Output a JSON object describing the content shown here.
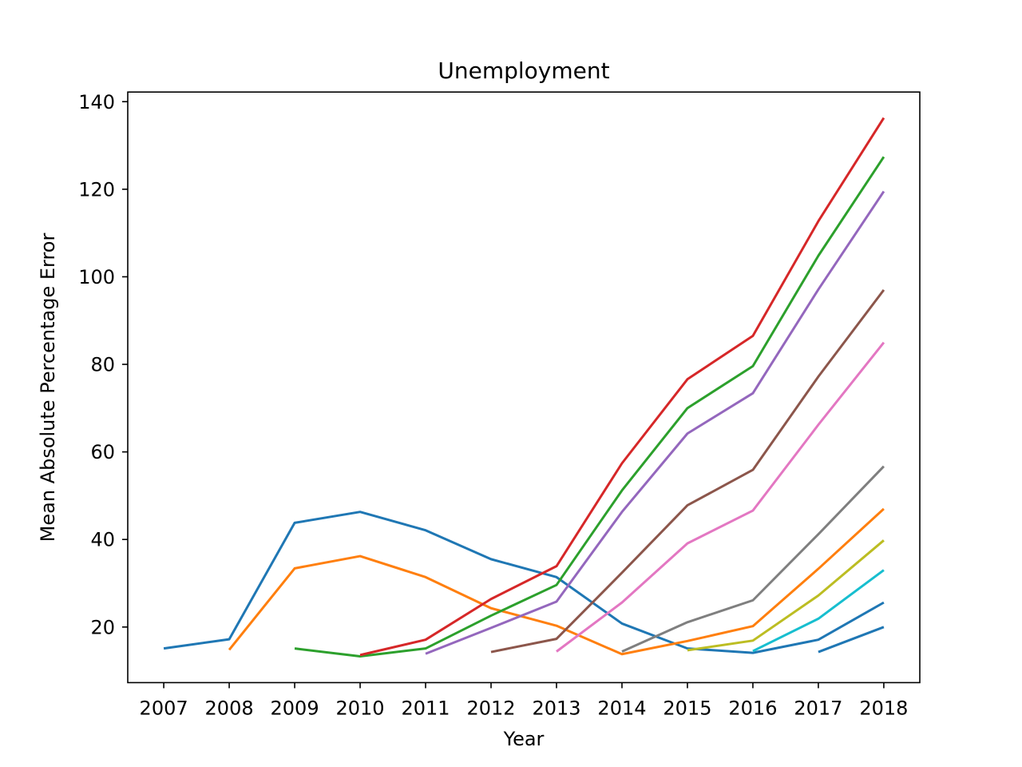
{
  "chart_data": {
    "type": "line",
    "title": "Unemployment",
    "xlabel": "Year",
    "ylabel": "Mean Absolute Percentage Error",
    "x": [
      2007,
      2008,
      2009,
      2010,
      2011,
      2012,
      2013,
      2014,
      2015,
      2016,
      2017,
      2018
    ],
    "x_tick_labels": [
      "2007",
      "2008",
      "2009",
      "2010",
      "2011",
      "2012",
      "2013",
      "2014",
      "2015",
      "2016",
      "2017",
      "2018"
    ],
    "y_ticks": [
      20,
      40,
      60,
      80,
      100,
      120,
      140
    ],
    "xlim": [
      2006.45,
      2018.55
    ],
    "ylim": [
      7.3,
      142.2
    ],
    "grid": false,
    "series": [
      {
        "color": "#1f77b4",
        "x": [
          2007,
          2008,
          2009,
          2010,
          2011,
          2012,
          2013,
          2014,
          2015,
          2016,
          2017,
          2018
        ],
        "values": [
          15.1,
          17.2,
          43.8,
          46.3,
          42.1,
          35.5,
          31.4,
          20.8,
          15.1,
          14.1,
          17.1,
          25.6
        ]
      },
      {
        "color": "#ff7f0e",
        "x": [
          2008,
          2009,
          2010,
          2011,
          2012,
          2013,
          2014,
          2015,
          2016,
          2017,
          2018
        ],
        "values": [
          14.8,
          33.4,
          36.2,
          31.4,
          24.3,
          20.3,
          13.8,
          16.8,
          20.2,
          33.3,
          47.0
        ]
      },
      {
        "color": "#2ca02c",
        "x": [
          2009,
          2010,
          2011,
          2012,
          2013,
          2014,
          2015,
          2016,
          2017,
          2018
        ],
        "values": [
          15.1,
          13.3,
          15.1,
          22.6,
          29.6,
          51.2,
          70.0,
          79.6,
          104.8,
          127.4
        ]
      },
      {
        "color": "#d62728",
        "x": [
          2010,
          2011,
          2012,
          2013,
          2014,
          2015,
          2016,
          2017,
          2018
        ],
        "values": [
          13.6,
          17.1,
          26.4,
          33.9,
          57.4,
          76.6,
          86.5,
          112.7,
          136.3
        ]
      },
      {
        "color": "#9467bd",
        "x": [
          2011,
          2012,
          2013,
          2014,
          2015,
          2016,
          2017,
          2018
        ],
        "values": [
          13.9,
          19.8,
          25.8,
          46.3,
          64.2,
          73.4,
          97.1,
          119.5
        ]
      },
      {
        "color": "#8c564b",
        "x": [
          2012,
          2013,
          2014,
          2015,
          2016,
          2017,
          2018
        ],
        "values": [
          14.3,
          17.3,
          32.4,
          47.8,
          55.9,
          77.2,
          97.0
        ]
      },
      {
        "color": "#e377c2",
        "x": [
          2013,
          2014,
          2015,
          2016,
          2017,
          2018
        ],
        "values": [
          14.4,
          25.6,
          39.1,
          46.6,
          66.2,
          85.0
        ]
      },
      {
        "color": "#7f7f7f",
        "x": [
          2014,
          2015,
          2016,
          2017,
          2018
        ],
        "values": [
          14.4,
          21.1,
          26.1,
          41.2,
          56.7
        ]
      },
      {
        "color": "#bcbd22",
        "x": [
          2015,
          2016,
          2017,
          2018
        ],
        "values": [
          14.7,
          16.9,
          27.2,
          39.8
        ]
      },
      {
        "color": "#17becf",
        "x": [
          2016,
          2017,
          2018
        ],
        "values": [
          14.5,
          21.9,
          33.0
        ]
      },
      {
        "color": "#1f77b4",
        "x": [
          2017,
          2018
        ],
        "values": [
          14.3,
          20.0
        ]
      }
    ]
  }
}
